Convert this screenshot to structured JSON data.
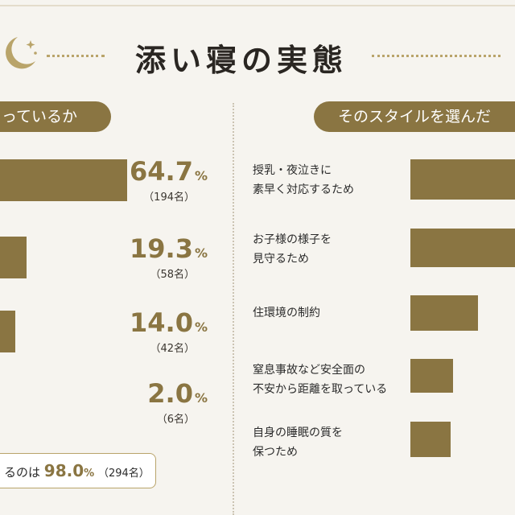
{
  "title": "添い寝の実態",
  "left_header": "っているか",
  "right_header": "そのスタイルを選んだ",
  "chart_data": [
    {
      "type": "bar",
      "orientation": "horizontal",
      "categories": [
        "",
        "",
        "",
        ""
      ],
      "values": [
        64.7,
        19.3,
        14.0,
        2.0
      ],
      "value_labels": [
        "64.7",
        "19.3",
        "14.0",
        "2.0"
      ],
      "unit": "%",
      "counts": [
        "（194名）",
        "（58名）",
        "（42名）",
        "（6名）"
      ],
      "xlim": [
        0,
        100
      ]
    },
    {
      "type": "bar",
      "orientation": "horizontal",
      "categories": [
        [
          "授乳・夜泣きに",
          "素早く対応するため"
        ],
        [
          "お子様の様子を",
          "見守るため"
        ],
        [
          "住環境の制約"
        ],
        [
          "窒息事故など安全面の",
          "不安から距離を取っている"
        ],
        [
          "自身の睡眠の質を",
          "保つため"
        ]
      ],
      "values": [
        100,
        100,
        60,
        38,
        36
      ]
    }
  ],
  "summary": {
    "prefix": "るのは",
    "value": "98.0",
    "unit": "%",
    "count": "（294名）"
  }
}
